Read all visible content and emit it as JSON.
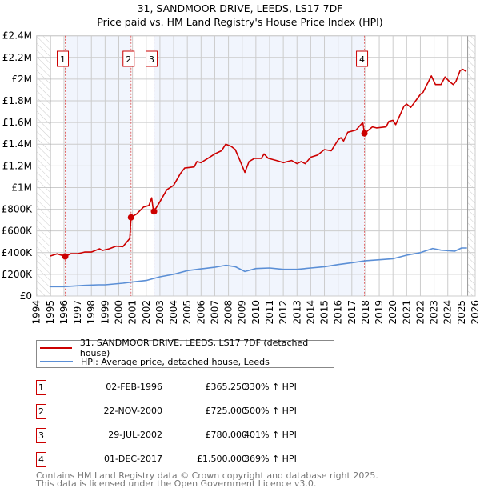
{
  "chart_data": {
    "type": "line",
    "title": "31, SANDMOOR DRIVE, LEEDS, LS17 7DF",
    "subtitle": "Price paid vs. HM Land Registry's House Price Index (HPI)",
    "xlabel": "",
    "ylabel": "",
    "xlim": [
      1994,
      2026
    ],
    "ylim": [
      0,
      2400000
    ],
    "x_ticks": [
      "1994",
      "1995",
      "1996",
      "1997",
      "1998",
      "1999",
      "2000",
      "2001",
      "2002",
      "2003",
      "2004",
      "2005",
      "2006",
      "2007",
      "2008",
      "2009",
      "2010",
      "2011",
      "2012",
      "2013",
      "2014",
      "2015",
      "2016",
      "2017",
      "2018",
      "2019",
      "2020",
      "2021",
      "2022",
      "2023",
      "2024",
      "2025",
      "2026"
    ],
    "y_ticks": [
      {
        "value": 0,
        "label": "£0"
      },
      {
        "value": 200000,
        "label": "£200K"
      },
      {
        "value": 400000,
        "label": "£400K"
      },
      {
        "value": 600000,
        "label": "£600K"
      },
      {
        "value": 800000,
        "label": "£800K"
      },
      {
        "value": 1000000,
        "label": "£1M"
      },
      {
        "value": 1200000,
        "label": "£1.2M"
      },
      {
        "value": 1400000,
        "label": "£1.4M"
      },
      {
        "value": 1600000,
        "label": "£1.6M"
      },
      {
        "value": 1800000,
        "label": "£1.8M"
      },
      {
        "value": 2000000,
        "label": "£2M"
      },
      {
        "value": 2200000,
        "label": "£2.2M"
      },
      {
        "value": 2400000,
        "label": "£2.4M"
      }
    ],
    "grid": true,
    "data_start": 1995.0,
    "data_end": 2025.45,
    "series": [
      {
        "name": "31, SANDMOOR DRIVE, LEEDS, LS17 7DF (detached house)",
        "color": "#cc0000",
        "x": [
          1995.0,
          1995.5,
          1996.09,
          1996.5,
          1997,
          1997.5,
          1998,
          1998.6,
          1998.8,
          1999.3,
          1999.8,
          2000.3,
          2000.8,
          2000.89,
          2001.3,
          2001.8,
          2002.2,
          2002.4,
          2002.5,
          2002.57,
          2003,
          2003.5,
          2004,
          2004.5,
          2004.8,
          2005.5,
          2005.7,
          2006,
          2006.5,
          2007,
          2007.5,
          2007.8,
          2008.2,
          2008.5,
          2008.87,
          2009.2,
          2009.5,
          2009.9,
          2010.4,
          2010.6,
          2010.9,
          2011.5,
          2012,
          2012.6,
          2013,
          2013.3,
          2013.6,
          2014,
          2014.5,
          2015,
          2015.5,
          2016,
          2016.2,
          2016.4,
          2016.7,
          2017.3,
          2017.8,
          2017.92,
          2018.5,
          2018.8,
          2019.5,
          2019.7,
          2020,
          2020.2,
          2020.8,
          2021.0,
          2021.3,
          2021.6,
          2022,
          2022.2,
          2022.8,
          2023.1,
          2023.5,
          2023.8,
          2024.1,
          2024.4,
          2024.6,
          2024.9,
          2025.1,
          2025.35
        ],
        "y": [
          369000,
          389000,
          365250,
          390000,
          390000,
          405000,
          405000,
          435000,
          420000,
          435000,
          460000,
          455000,
          530000,
          725000,
          757000,
          820000,
          835000,
          905000,
          810000,
          780000,
          870000,
          980000,
          1020000,
          1130000,
          1180000,
          1190000,
          1240000,
          1230000,
          1270000,
          1310000,
          1340000,
          1400000,
          1380000,
          1350000,
          1240000,
          1140000,
          1240000,
          1270000,
          1270000,
          1310000,
          1270000,
          1250000,
          1230000,
          1250000,
          1220000,
          1240000,
          1220000,
          1280000,
          1300000,
          1350000,
          1340000,
          1440000,
          1460000,
          1430000,
          1510000,
          1530000,
          1600000,
          1500000,
          1560000,
          1550000,
          1560000,
          1610000,
          1620000,
          1580000,
          1750000,
          1770000,
          1740000,
          1790000,
          1860000,
          1880000,
          2030000,
          1950000,
          1950000,
          2020000,
          1980000,
          1950000,
          1980000,
          2080000,
          2090000,
          2070000
        ]
      },
      {
        "name": "HPI: Average price, detached house, Leeds",
        "color": "#5b8fd6",
        "x": [
          1995,
          1996,
          1997.5,
          1998.5,
          1999,
          2000.3,
          2000.9,
          2002,
          2003,
          2004,
          2005,
          2006,
          2007,
          2007.8,
          2008.5,
          2009.2,
          2010,
          2011,
          2012,
          2013,
          2014,
          2015,
          2016,
          2017,
          2018,
          2019,
          2020,
          2021,
          2022,
          2022.9,
          2023.5,
          2024.5,
          2025,
          2025.4
        ],
        "y": [
          86000,
          86000,
          98000,
          103000,
          103000,
          118000,
          128000,
          143000,
          177000,
          200000,
          234000,
          250000,
          265000,
          283000,
          270000,
          226000,
          253000,
          258000,
          246000,
          246000,
          258000,
          270000,
          290000,
          307000,
          325000,
          334000,
          344000,
          376000,
          400000,
          438000,
          423000,
          413000,
          443000,
          443000
        ]
      }
    ],
    "sales": [
      {
        "label": "1",
        "x": 2000.0,
        "year": 1996.09,
        "value": 365250
      },
      {
        "label": "2",
        "year": 2000.89,
        "value": 725000
      },
      {
        "label": "3",
        "year": 2002.57,
        "value": 780000
      },
      {
        "label": "4",
        "year": 2017.92,
        "value": 1500000
      }
    ],
    "legend": "below"
  },
  "title": "31, SANDMOOR DRIVE, LEEDS, LS17 7DF",
  "subtitle": "Price paid vs. HM Land Registry's House Price Index (HPI)",
  "legend": {
    "items": [
      {
        "label": "31, SANDMOOR DRIVE, LEEDS, LS17 7DF (detached house)",
        "color": "#cc0000"
      },
      {
        "label": "HPI: Average price, detached house, Leeds",
        "color": "#5b8fd6"
      }
    ]
  },
  "transactions": [
    {
      "num": "1",
      "date": "02-FEB-1996",
      "price": "£365,250",
      "pct": "330% ↑ HPI"
    },
    {
      "num": "2",
      "date": "22-NOV-2000",
      "price": "£725,000",
      "pct": "500% ↑ HPI"
    },
    {
      "num": "3",
      "date": "29-JUL-2002",
      "price": "£780,000",
      "pct": "401% ↑ HPI"
    },
    {
      "num": "4",
      "date": "01-DEC-2017",
      "price": "£1,500,000",
      "pct": "369% ↑ HPI"
    }
  ],
  "footer": {
    "line1": "Contains HM Land Registry data © Crown copyright and database right 2025.",
    "line2": "This data is licensed under the Open Government Licence v3.0."
  }
}
